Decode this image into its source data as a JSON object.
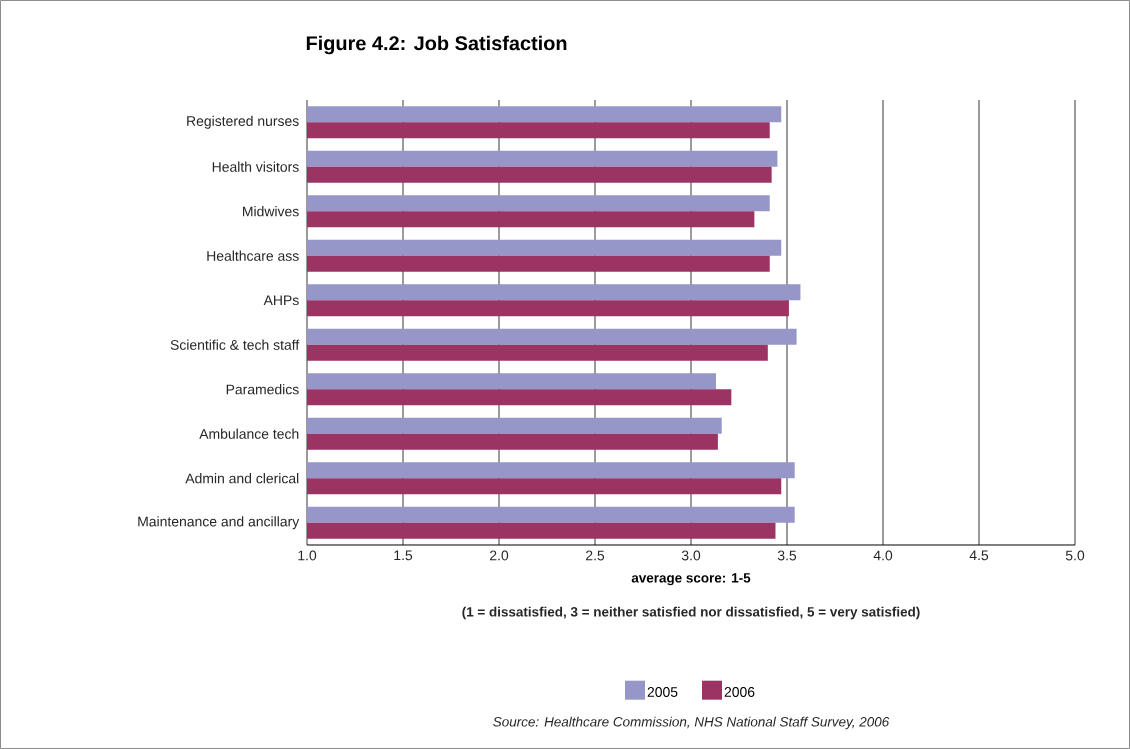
{
  "chart_data": {
    "type": "bar",
    "orientation": "horizontal",
    "title": "Figure 4.2: Job Satisfaction",
    "xlabel": "average score: 1-5",
    "categories": [
      "Registered nurses",
      "Health visitors",
      "Midwives",
      "Healthcare ass",
      "AHPs",
      "Scientific & tech staff",
      "Paramedics",
      "Ambulance tech",
      "Admin and clerical",
      "Maintenance and ancillary"
    ],
    "series": [
      {
        "name": "2005",
        "color": "#9696c8",
        "values": [
          3.47,
          3.45,
          3.41,
          3.47,
          3.57,
          3.55,
          3.13,
          3.16,
          3.54,
          3.54
        ]
      },
      {
        "name": "2006",
        "color": "#9b3363",
        "values": [
          3.41,
          3.42,
          3.33,
          3.41,
          3.51,
          3.4,
          3.21,
          3.14,
          3.47,
          3.44
        ]
      }
    ],
    "xlim": [
      1.0,
      5.0
    ],
    "xticks": [
      {
        "value": 1.0,
        "label": "1.0"
      },
      {
        "value": 1.5,
        "label": "1.5"
      },
      {
        "value": 2.0,
        "label": "2.0"
      },
      {
        "value": 2.5,
        "label": "2.5"
      },
      {
        "value": 3.0,
        "label": "3.0"
      },
      {
        "value": 3.5,
        "label": "3.5"
      },
      {
        "value": 4.0,
        "label": "4.0"
      },
      {
        "value": 4.5,
        "label": "4.5"
      },
      {
        "value": 5.0,
        "label": "5.0"
      }
    ],
    "grid": "x",
    "legend": "bottom",
    "annotations": [
      "(1 = dissatisfied, 3 = neither satisfied nor dissatisfied, 5 = very satisfied)",
      "Source: Healthcare Commission, NHS National Staff Survey, 2006"
    ]
  }
}
